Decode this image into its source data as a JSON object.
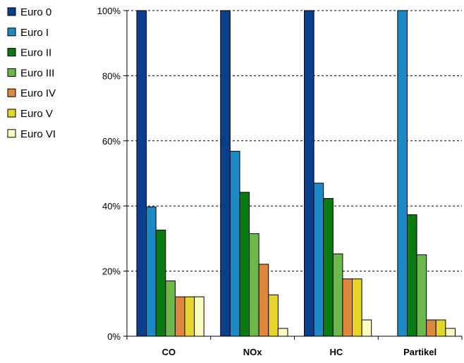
{
  "chart_data": {
    "type": "bar",
    "categories": [
      "CO",
      "NOx",
      "HC",
      "Partikel"
    ],
    "series": [
      {
        "name": "Euro 0",
        "color": "#0b3f8c",
        "values": [
          100,
          100,
          100,
          0
        ]
      },
      {
        "name": "Euro I",
        "color": "#1d8ac8",
        "values": [
          39.7,
          56.8,
          47.0,
          100
        ]
      },
      {
        "name": "Euro II",
        "color": "#0a7a12",
        "values": [
          32.6,
          44.2,
          42.3,
          37.3
        ]
      },
      {
        "name": "Euro III",
        "color": "#6cb84a",
        "values": [
          17.0,
          31.5,
          25.3,
          25.0
        ]
      },
      {
        "name": "Euro IV",
        "color": "#e0873e",
        "values": [
          12.1,
          22.1,
          17.6,
          5.0
        ]
      },
      {
        "name": "Euro V",
        "color": "#e6d52d",
        "values": [
          12.1,
          12.7,
          17.6,
          5.0
        ]
      },
      {
        "name": "Euro VI",
        "color": "#fdfcc0",
        "values": [
          12.1,
          2.4,
          5.0,
          2.4
        ]
      }
    ],
    "yticks": [
      "0%",
      "20%",
      "40%",
      "60%",
      "80%",
      "100%"
    ],
    "ylim": [
      0,
      100
    ],
    "grid": "horizontal dashed",
    "legend_position": "left"
  }
}
